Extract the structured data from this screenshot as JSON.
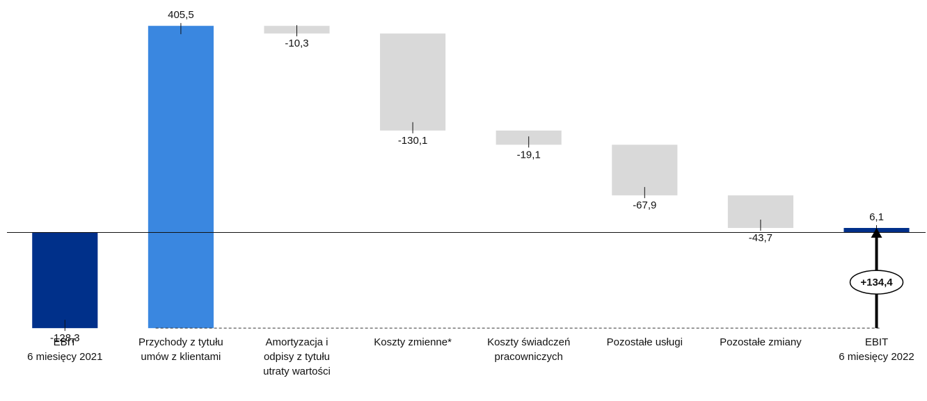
{
  "chart_data": {
    "type": "waterfall",
    "categories": [
      "EBIT\n6 miesięcy 2021",
      "Przychody z tytułu\numów z klientami",
      "Amortyzacja i\nodpisy z tytułu\nutraty wartości",
      "Koszty zmienne*",
      "Koszty świadczeń\npracowniczych",
      "Pozostałe usługi",
      "Pozostałe zmiany",
      "EBIT\n6 miesięcy 2022"
    ],
    "values": [
      -128.3,
      405.5,
      -10.3,
      -130.1,
      -19.1,
      -67.9,
      -43.7,
      6.1
    ],
    "value_labels": [
      "-128,3",
      "405,5",
      "-10,3",
      "-130,1",
      "-19,1",
      "-67,9",
      "-43,7",
      "6,1"
    ],
    "measure": [
      "absolute",
      "relative",
      "relative",
      "relative",
      "relative",
      "relative",
      "relative",
      "total"
    ],
    "colors": [
      "#00308a",
      "#3a87e0",
      "#d9d9d9",
      "#d9d9d9",
      "#d9d9d9",
      "#d9d9d9",
      "#d9d9d9",
      "#00308a"
    ],
    "ylim": [
      -130,
      310
    ],
    "annotation": {
      "label": "+134,4",
      "value": 134.4
    }
  }
}
